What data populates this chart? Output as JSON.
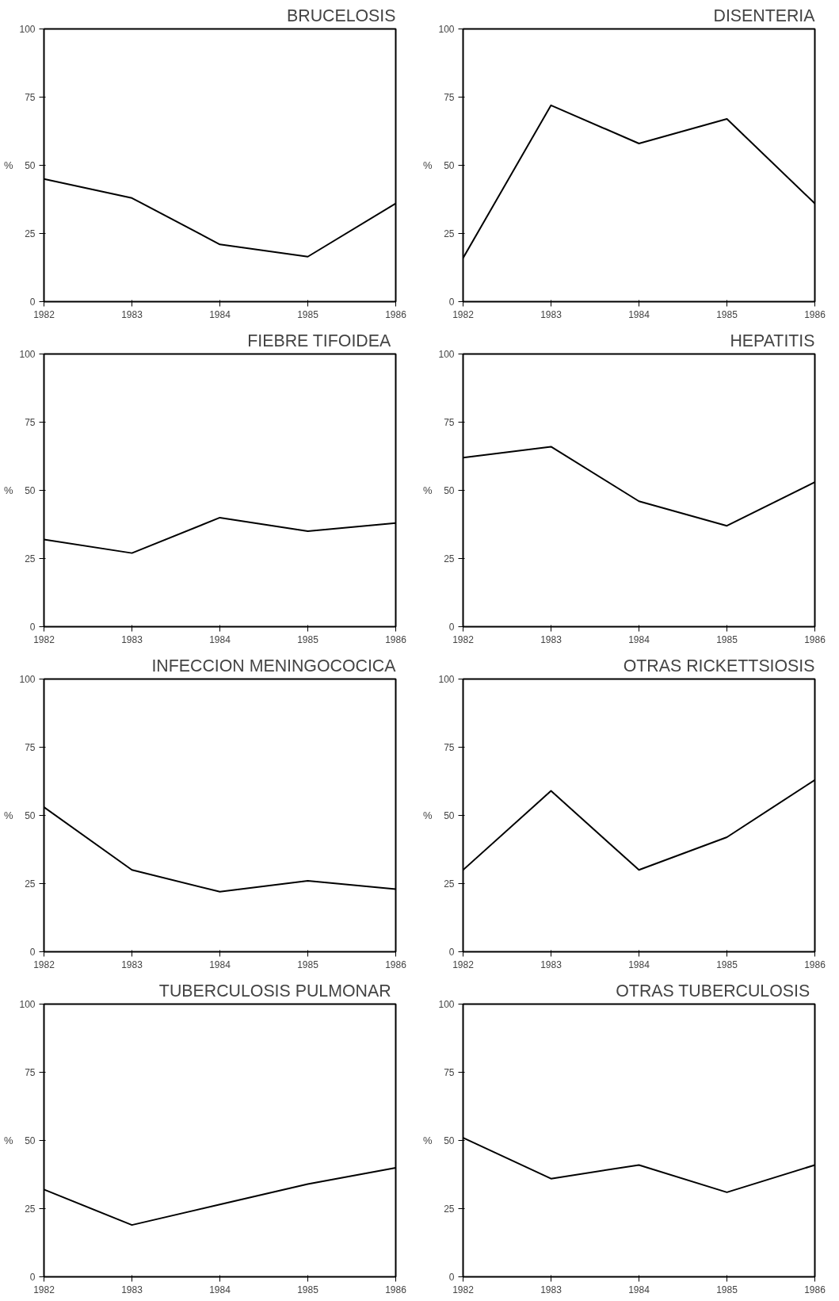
{
  "chart_data": [
    {
      "type": "line",
      "title": "BRUCELOSIS",
      "ylabel": "%",
      "x": [
        1982,
        1983,
        1984,
        1985,
        1986
      ],
      "values": [
        45,
        38,
        21,
        16.5,
        36
      ],
      "color": "#000000",
      "xlim": [
        1982,
        1986
      ],
      "ylim": [
        0,
        100
      ],
      "xticks": [
        1982,
        1983,
        1984,
        1985,
        1986
      ],
      "yticks": [
        0,
        25,
        50,
        75,
        100
      ],
      "grid": false
    },
    {
      "type": "line",
      "title": "DISENTERIA",
      "ylabel": "%",
      "x": [
        1982,
        1983,
        1984,
        1985,
        1986
      ],
      "values": [
        16,
        72,
        58,
        67,
        36
      ],
      "color": "#000000",
      "xlim": [
        1982,
        1986
      ],
      "ylim": [
        0,
        100
      ],
      "xticks": [
        1982,
        1983,
        1984,
        1985,
        1986
      ],
      "yticks": [
        0,
        25,
        50,
        75,
        100
      ],
      "grid": false
    },
    {
      "type": "line",
      "title": "FIEBRE  TIFOIDEA",
      "ylabel": "%",
      "x": [
        1982,
        1983,
        1984,
        1985,
        1986
      ],
      "values": [
        32,
        27,
        40,
        35,
        38
      ],
      "color": "#000000",
      "xlim": [
        1982,
        1986
      ],
      "ylim": [
        0,
        100
      ],
      "xticks": [
        1982,
        1983,
        1984,
        1985,
        1986
      ],
      "yticks": [
        0,
        25,
        50,
        75,
        100
      ],
      "grid": false
    },
    {
      "type": "line",
      "title": "HEPATITIS",
      "ylabel": "%",
      "x": [
        1982,
        1983,
        1984,
        1985,
        1986
      ],
      "values": [
        62,
        66,
        46,
        37,
        53
      ],
      "color": "#000000",
      "xlim": [
        1982,
        1986
      ],
      "ylim": [
        0,
        100
      ],
      "xticks": [
        1982,
        1983,
        1984,
        1985,
        1986
      ],
      "yticks": [
        0,
        25,
        50,
        75,
        100
      ],
      "grid": false
    },
    {
      "type": "line",
      "title": "INFECCION MENINGOCOCICA",
      "ylabel": "%",
      "x": [
        1982,
        1983,
        1984,
        1985,
        1986
      ],
      "values": [
        53,
        30,
        22,
        26,
        23
      ],
      "color": "#000000",
      "xlim": [
        1982,
        1986
      ],
      "ylim": [
        0,
        100
      ],
      "xticks": [
        1982,
        1983,
        1984,
        1985,
        1986
      ],
      "yticks": [
        0,
        25,
        50,
        75,
        100
      ],
      "grid": false
    },
    {
      "type": "line",
      "title": "OTRAS RICKETTSIOSIS",
      "ylabel": "%",
      "x": [
        1982,
        1983,
        1984,
        1985,
        1986
      ],
      "values": [
        30,
        59,
        30,
        42,
        63
      ],
      "color": "#000000",
      "xlim": [
        1982,
        1986
      ],
      "ylim": [
        0,
        100
      ],
      "xticks": [
        1982,
        1983,
        1984,
        1985,
        1986
      ],
      "yticks": [
        0,
        25,
        50,
        75,
        100
      ],
      "grid": false
    },
    {
      "type": "line",
      "title": "TUBERCULOSIS  PULMONAR",
      "ylabel": "%",
      "x": [
        1982,
        1983,
        1984,
        1985,
        1986
      ],
      "values": [
        32,
        19,
        26.5,
        34,
        40
      ],
      "color": "#000000",
      "xlim": [
        1982,
        1986
      ],
      "ylim": [
        0,
        100
      ],
      "xticks": [
        1982,
        1983,
        1984,
        1985,
        1986
      ],
      "yticks": [
        0,
        25,
        50,
        75,
        100
      ],
      "grid": false
    },
    {
      "type": "line",
      "title": "OTRAS  TUBERCULOSIS",
      "ylabel": "%",
      "x": [
        1982,
        1983,
        1984,
        1985,
        1986
      ],
      "values": [
        51,
        36,
        41,
        31,
        41
      ],
      "color": "#000000",
      "xlim": [
        1982,
        1986
      ],
      "ylim": [
        0,
        100
      ],
      "xticks": [
        1982,
        1983,
        1984,
        1985,
        1986
      ],
      "yticks": [
        0,
        25,
        50,
        75,
        100
      ],
      "grid": false
    }
  ]
}
